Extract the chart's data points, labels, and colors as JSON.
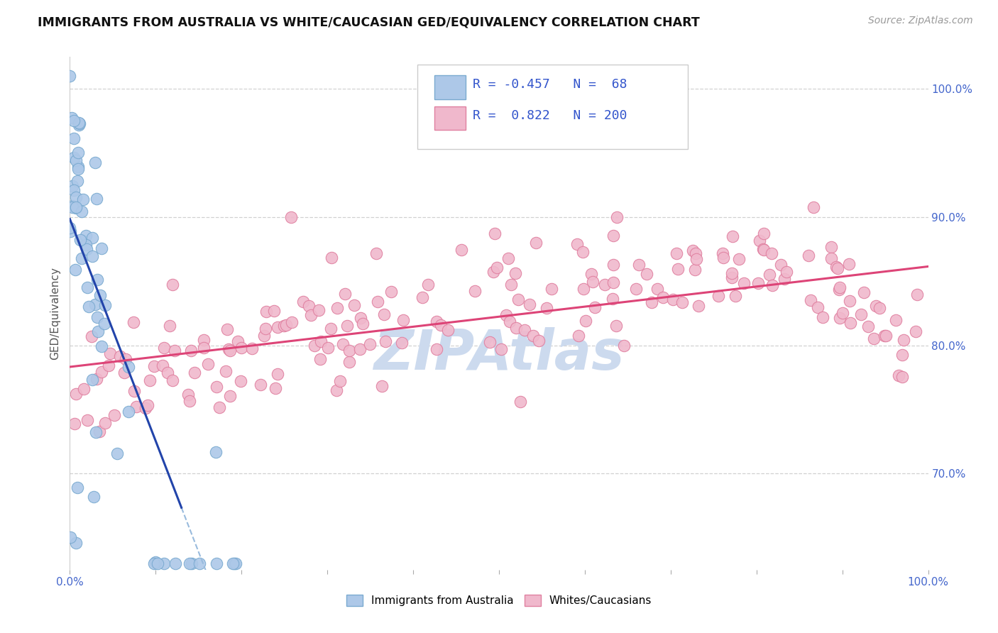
{
  "title": "IMMIGRANTS FROM AUSTRALIA VS WHITE/CAUCASIAN GED/EQUIVALENCY CORRELATION CHART",
  "source": "Source: ZipAtlas.com",
  "ylabel": "GED/Equivalency",
  "ytick_labels": [
    "70.0%",
    "80.0%",
    "90.0%",
    "100.0%"
  ],
  "ytick_values": [
    0.7,
    0.8,
    0.9,
    1.0
  ],
  "australia_color": "#adc8e8",
  "australia_edge": "#7aaad0",
  "australia_line_color": "#2244aa",
  "australia_dash_color": "#99bbdd",
  "white_color": "#f0b8cc",
  "white_edge": "#e080a0",
  "white_line_color": "#dd4477",
  "watermark_color": "#ccdaee",
  "background": "#ffffff",
  "grid_color": "#cccccc",
  "xmin": 0.0,
  "xmax": 1.0,
  "ymin": 0.625,
  "ymax": 1.025,
  "tick_color": "#4466cc",
  "label_color": "#555555",
  "legend_text_color": "#3355cc"
}
